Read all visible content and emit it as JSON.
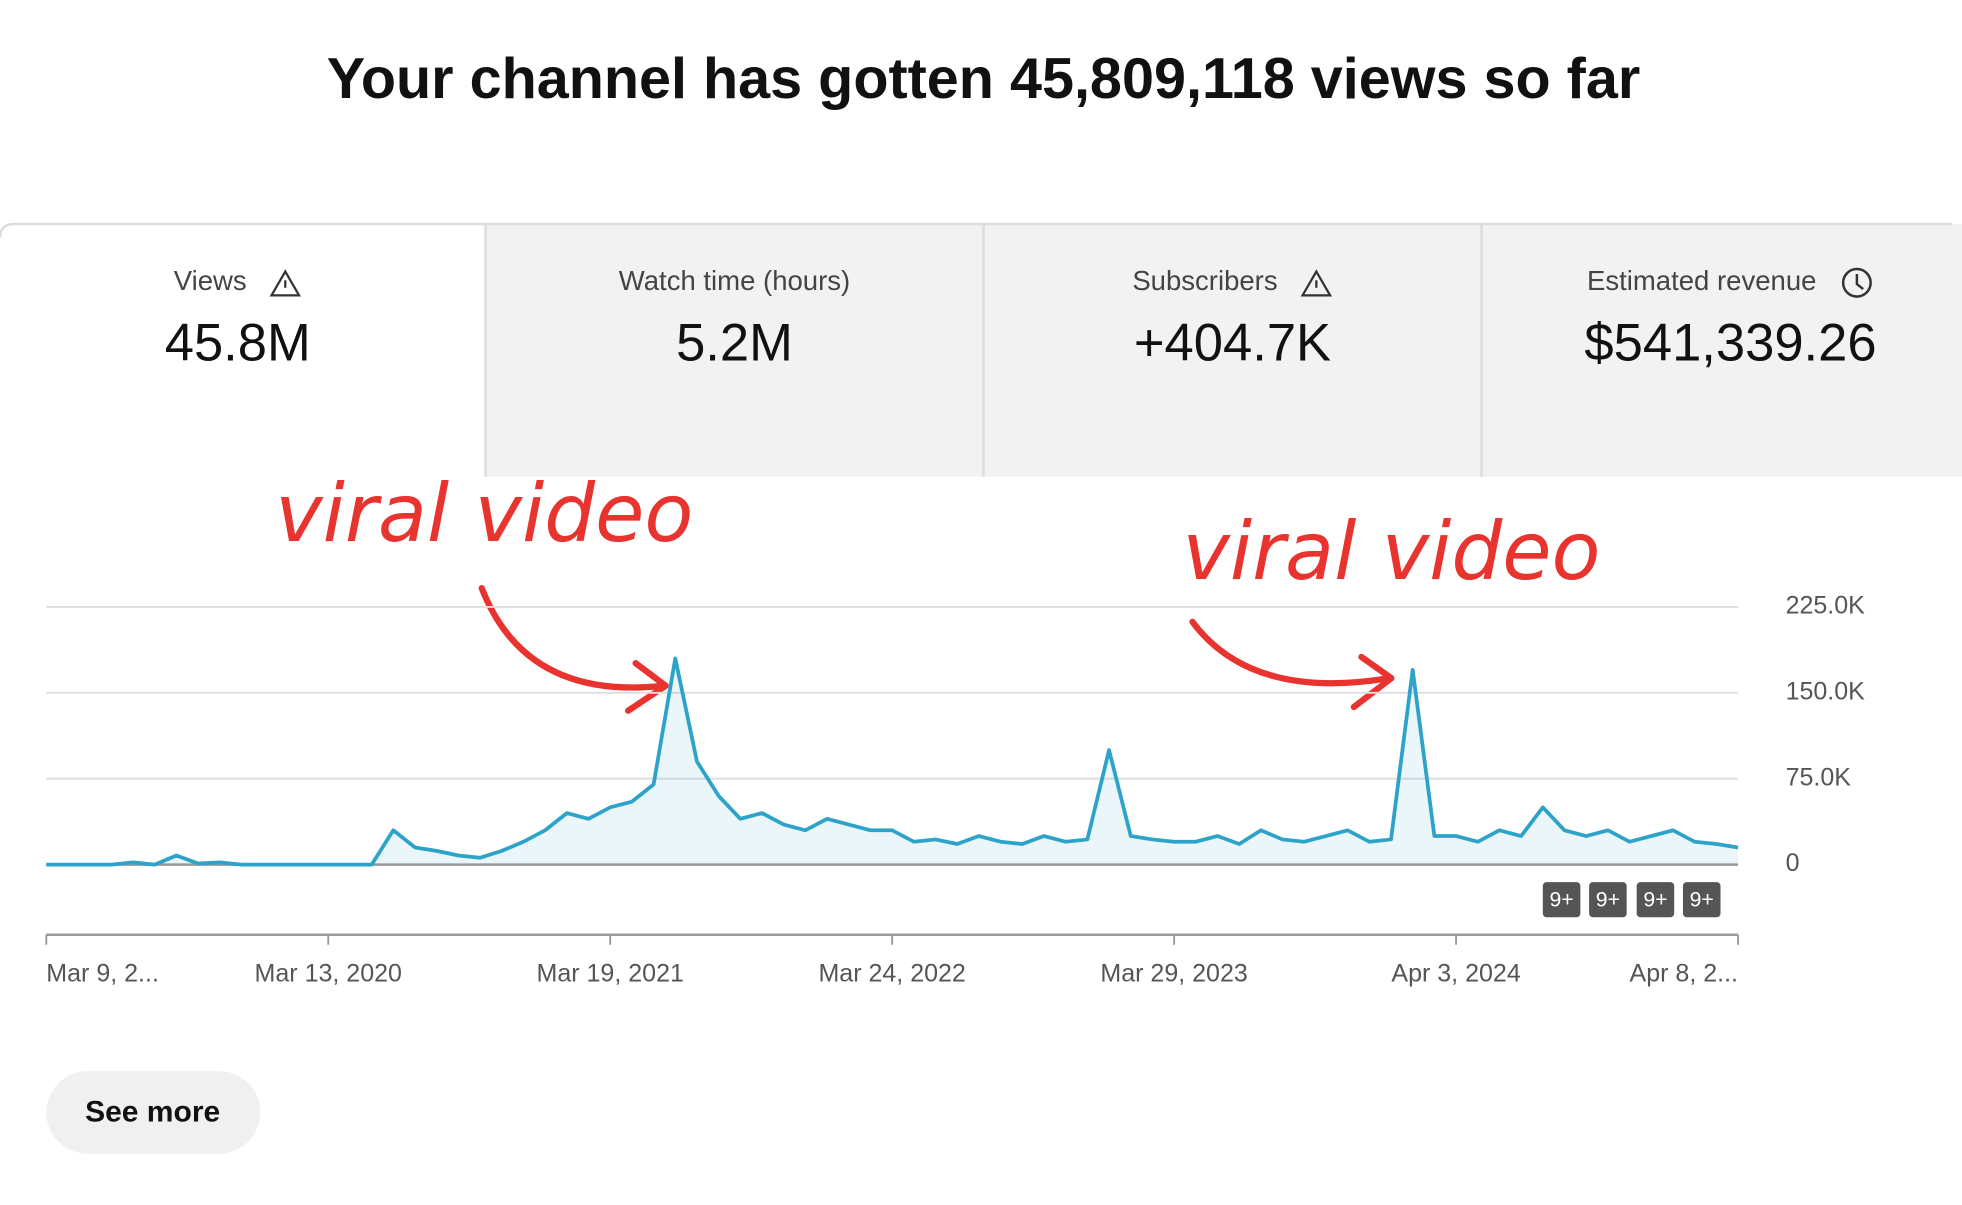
{
  "header": {
    "title": "Your channel has gotten 45,809,118 views so far"
  },
  "cards": [
    {
      "label": "Views",
      "value": "45.8M"
    },
    {
      "label": "Watch time (hours)",
      "value": "5.2M"
    },
    {
      "label": "Subscribers",
      "value": "+404.7K"
    },
    {
      "label": "Estimated revenue",
      "value": "$541,339.26"
    }
  ],
  "annotations": [
    "viral video",
    "viral video"
  ],
  "chart_data": {
    "type": "line",
    "color": "#2ea3c9",
    "values": [
      0,
      0,
      0,
      0,
      2000,
      0,
      8000,
      1000,
      2000,
      0,
      0,
      0,
      0,
      0,
      0,
      0,
      30000,
      15000,
      12000,
      8000,
      6000,
      12000,
      20000,
      30000,
      45000,
      40000,
      50000,
      55000,
      70000,
      180000,
      90000,
      60000,
      40000,
      45000,
      35000,
      30000,
      40000,
      35000,
      30000,
      30000,
      20000,
      22000,
      18000,
      25000,
      20000,
      18000,
      25000,
      20000,
      22000,
      100000,
      25000,
      22000,
      20000,
      20000,
      25000,
      18000,
      30000,
      22000,
      20000,
      25000,
      30000,
      20000,
      22000,
      170000,
      25000,
      25000,
      20000,
      30000,
      25000,
      50000,
      30000,
      25000,
      30000,
      20000,
      25000,
      30000,
      20000,
      18000,
      15000
    ],
    "ylim": [
      0,
      225000
    ],
    "yticks": [
      0,
      {
        "value": 75000,
        "label": "75.0K"
      },
      {
        "value": 150000,
        "label": "150.0K"
      },
      {
        "value": 225000,
        "label": "225.0K"
      }
    ],
    "xticks": [
      {
        "value": 0,
        "label": "Mar 9, 2..."
      },
      {
        "value": 13,
        "label": "Mar 13, 2020"
      },
      {
        "value": 26,
        "label": "Mar 19, 2021"
      },
      {
        "value": 39,
        "label": "Mar 24, 2022"
      },
      {
        "value": 52,
        "label": "Mar 29, 2023"
      },
      {
        "value": 65,
        "label": "Apr 3, 2024"
      },
      {
        "value": 78,
        "label": "Apr 8, 2..."
      }
    ],
    "badges": [
      "9+",
      "9+",
      "9+",
      "9+"
    ],
    "grid": true
  },
  "button": {
    "label": "See more"
  }
}
